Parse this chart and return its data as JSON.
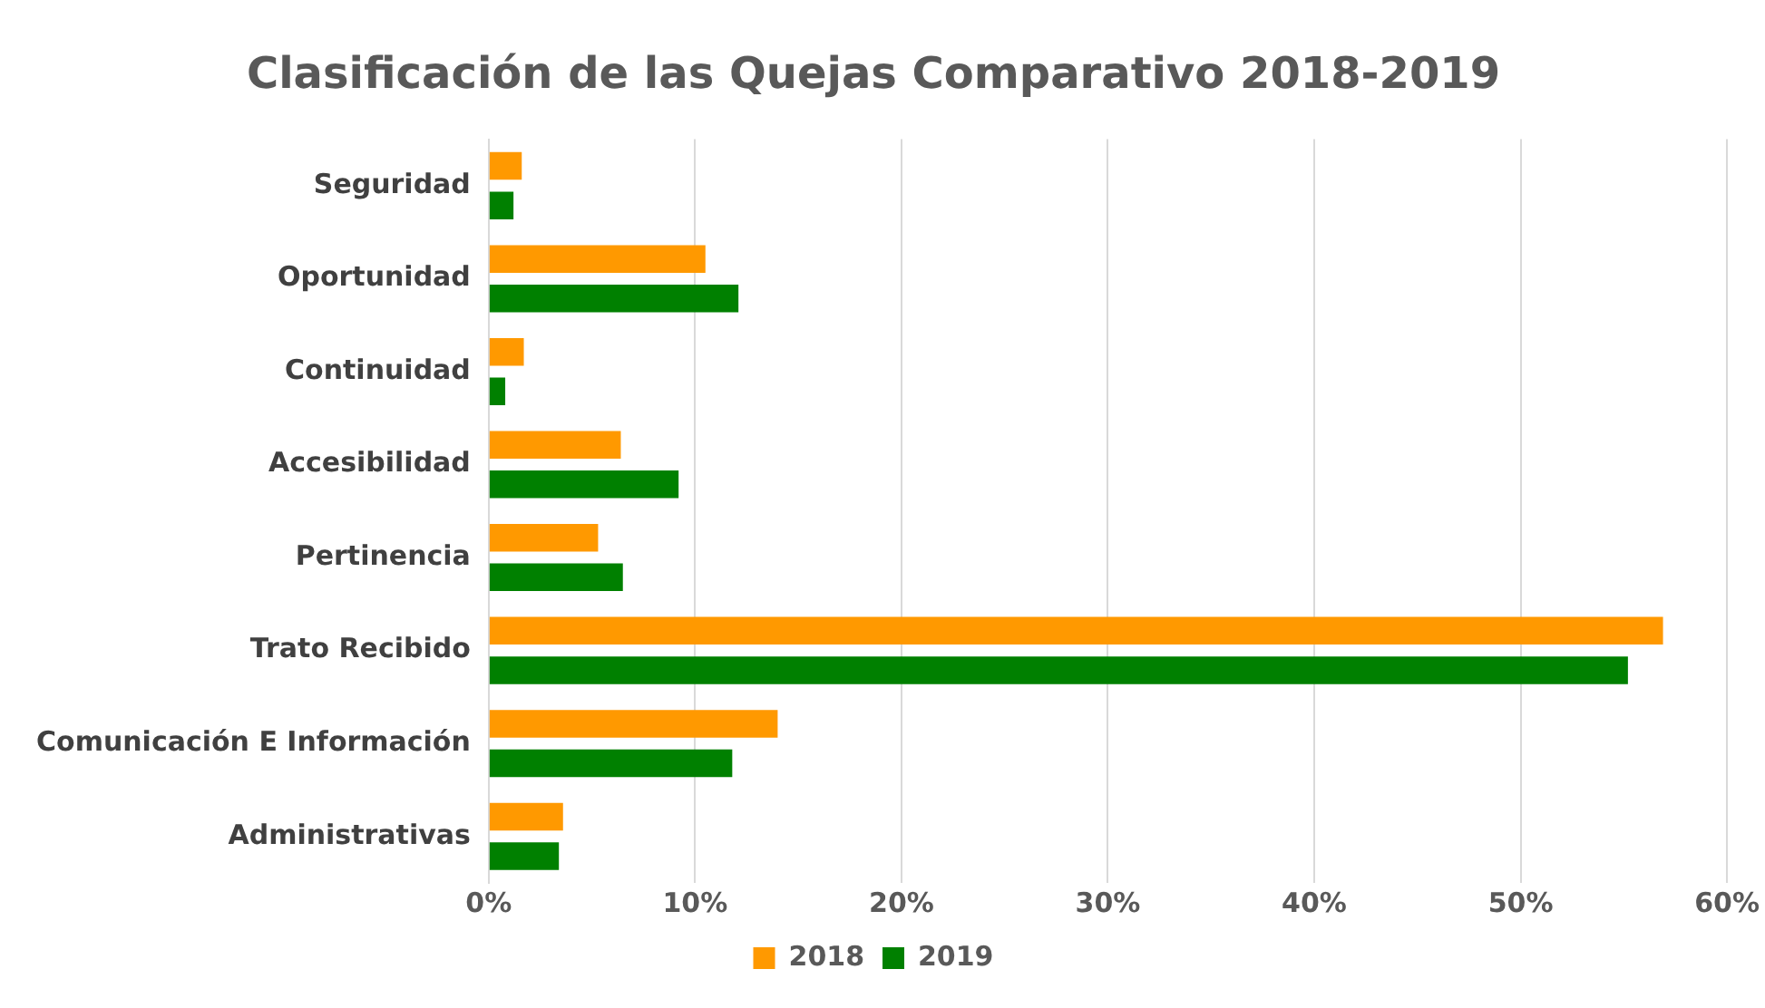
{
  "chart_data": {
    "type": "bar",
    "orientation": "horizontal",
    "title": "Clasificación de las Quejas Comparativo 2018-2019",
    "categories": [
      "Seguridad",
      "Oportunidad",
      "Continuidad",
      "Accesibilidad",
      "Pertinencia",
      "Trato Recibido",
      "Comunicación E Información",
      "Administrativas"
    ],
    "series": [
      {
        "name": "2018",
        "color": "#ff9900",
        "values": [
          1.6,
          10.5,
          1.7,
          6.4,
          5.3,
          56.9,
          14.0,
          3.6
        ]
      },
      {
        "name": "2019",
        "color": "#008000",
        "values": [
          1.2,
          12.1,
          0.8,
          9.2,
          6.5,
          55.2,
          11.8,
          3.4
        ]
      }
    ],
    "xlim": [
      0,
      60
    ],
    "xticks": [
      {
        "value": 0,
        "label": "0%"
      },
      {
        "value": 10,
        "label": "10%"
      },
      {
        "value": 20,
        "label": "20%"
      },
      {
        "value": 30,
        "label": "30%"
      },
      {
        "value": 40,
        "label": "40%"
      },
      {
        "value": 50,
        "label": "50%"
      },
      {
        "value": 60,
        "label": "60%"
      }
    ],
    "grid": "x",
    "legend": "bottom"
  }
}
